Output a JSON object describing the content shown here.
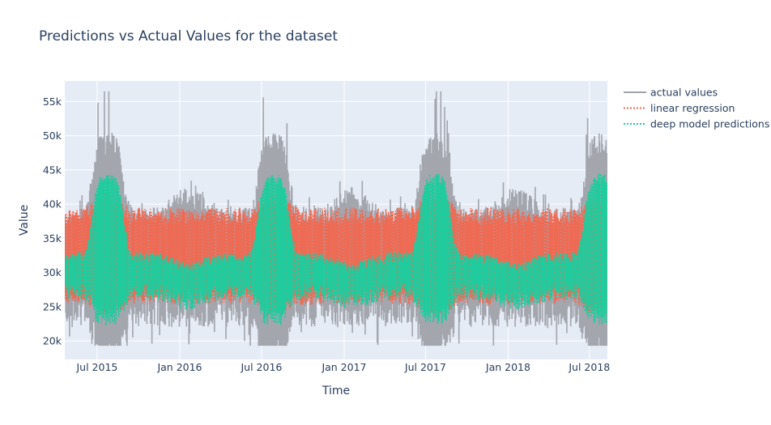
{
  "chart_data": {
    "type": "line",
    "title": "Predictions vs Actual Values for the dataset",
    "xlabel": "Time",
    "ylabel": "Value",
    "x_range": [
      "2015-04-20",
      "2018-08-10"
    ],
    "ylim": [
      17300,
      58000
    ],
    "x_ticks": [
      {
        "date": "2015-07-01",
        "label": "Jul 2015"
      },
      {
        "date": "2016-01-01",
        "label": "Jan 2016"
      },
      {
        "date": "2016-07-01",
        "label": "Jul 2016"
      },
      {
        "date": "2017-01-01",
        "label": "Jan 2017"
      },
      {
        "date": "2017-07-01",
        "label": "Jul 2017"
      },
      {
        "date": "2018-01-01",
        "label": "Jan 2018"
      },
      {
        "date": "2018-07-01",
        "label": "Jul 2018"
      }
    ],
    "y_ticks": [
      {
        "value": 20000,
        "label": "20k"
      },
      {
        "value": 25000,
        "label": "25k"
      },
      {
        "value": 30000,
        "label": "30k"
      },
      {
        "value": 35000,
        "label": "35k"
      },
      {
        "value": 40000,
        "label": "40k"
      },
      {
        "value": 45000,
        "label": "45k"
      },
      {
        "value": 50000,
        "label": "50k"
      },
      {
        "value": 55000,
        "label": "55k"
      }
    ],
    "grid": true,
    "legend_position": "top-right",
    "series": [
      {
        "name": "actual values",
        "color": "#a0a2aa",
        "dash": "solid",
        "summer_peak_dates": [
          "2015-07-25",
          "2016-07-28",
          "2017-07-22",
          "2018-07-25"
        ],
        "envelope_extremes": {
          "max": 56500,
          "min": 19300
        }
      },
      {
        "name": "linear regression",
        "color": "#ef6a53",
        "dash": "dot",
        "envelope": {
          "summer_high": 40500,
          "off_season_high": 38500,
          "low": 24500
        }
      },
      {
        "name": "deep model predictions",
        "color": "#1fcc9e",
        "dash": "dot",
        "envelope": {
          "summer_high": 44000,
          "off_season_high": 32800,
          "low": 22000
        }
      }
    ]
  }
}
